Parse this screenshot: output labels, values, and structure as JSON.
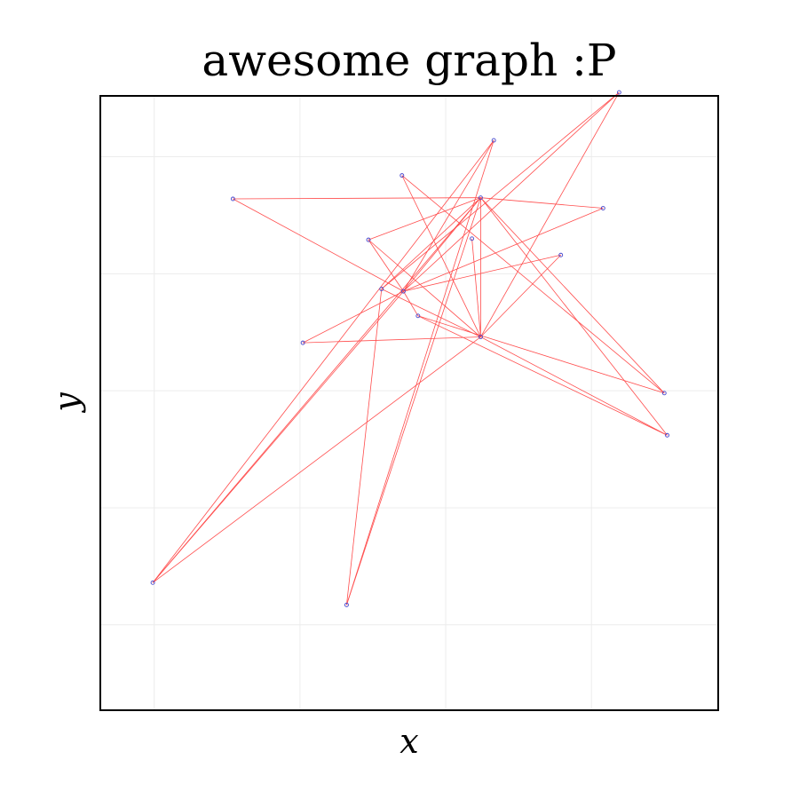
{
  "chart_data": {
    "type": "scatter",
    "title": "awesome graph :P",
    "xlabel": "x",
    "ylabel": "y",
    "xlim": [
      -0.37,
      3.87
    ],
    "ylim": [
      -3.73,
      1.52
    ],
    "x_gridlines": [
      0,
      1,
      2,
      3
    ],
    "y_gridlines": [
      -3,
      -2,
      -1,
      0,
      1
    ],
    "show_tick_labels": false,
    "grid": true,
    "point_color": "#4444cc",
    "edge_color": "#ff4d4d",
    "grid_color": "#ececec",
    "points": [
      {
        "x": -0.01,
        "y": -2.64
      },
      {
        "x": 0.54,
        "y": 0.64
      },
      {
        "x": 1.02,
        "y": -0.59
      },
      {
        "x": 1.32,
        "y": -2.83
      },
      {
        "x": 1.47,
        "y": 0.29
      },
      {
        "x": 1.56,
        "y": -0.13
      },
      {
        "x": 1.7,
        "y": 0.84
      },
      {
        "x": 1.71,
        "y": -0.15
      },
      {
        "x": 1.81,
        "y": -0.36
      },
      {
        "x": 2.18,
        "y": 0.3
      },
      {
        "x": 2.24,
        "y": -0.54
      },
      {
        "x": 2.24,
        "y": 0.65
      },
      {
        "x": 2.33,
        "y": 1.14
      },
      {
        "x": 2.79,
        "y": 0.16
      },
      {
        "x": 3.08,
        "y": 0.56
      },
      {
        "x": 3.19,
        "y": 1.55
      },
      {
        "x": 3.5,
        "y": -1.02
      },
      {
        "x": 3.52,
        "y": -1.38
      }
    ],
    "edges": [
      [
        0,
        7
      ],
      [
        0,
        11
      ],
      [
        0,
        10
      ],
      [
        0,
        12
      ],
      [
        1,
        11
      ],
      [
        1,
        7
      ],
      [
        2,
        10
      ],
      [
        2,
        7
      ],
      [
        3,
        11
      ],
      [
        3,
        5
      ],
      [
        3,
        12
      ],
      [
        4,
        7
      ],
      [
        4,
        10
      ],
      [
        4,
        11
      ],
      [
        5,
        11
      ],
      [
        5,
        10
      ],
      [
        5,
        15
      ],
      [
        6,
        10
      ],
      [
        6,
        16
      ],
      [
        7,
        8
      ],
      [
        7,
        12
      ],
      [
        7,
        13
      ],
      [
        7,
        14
      ],
      [
        7,
        15
      ],
      [
        7,
        11
      ],
      [
        8,
        16
      ],
      [
        8,
        17
      ],
      [
        9,
        10
      ],
      [
        10,
        11
      ],
      [
        10,
        13
      ],
      [
        10,
        15
      ],
      [
        10,
        17
      ],
      [
        11,
        14
      ],
      [
        11,
        16
      ],
      [
        11,
        17
      ]
    ]
  }
}
